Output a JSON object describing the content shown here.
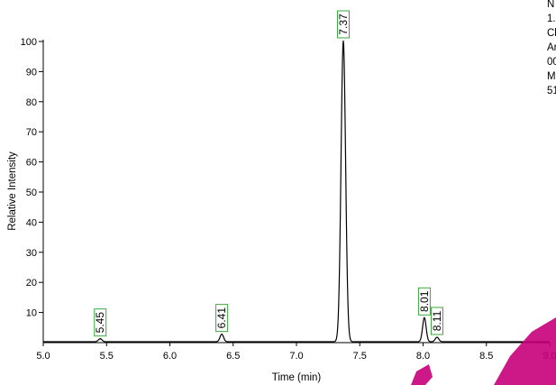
{
  "chart_data": {
    "type": "line",
    "xlabel": "Time (min)",
    "ylabel": "Relative Intensity",
    "xlim": [
      5.0,
      9.0
    ],
    "ylim": [
      0,
      100
    ],
    "x_ticks": [
      "5.0",
      "5.5",
      "6.0",
      "6.5",
      "7.0",
      "7.5",
      "8.0",
      "8.5",
      "9.0"
    ],
    "y_ticks": [
      "10",
      "20",
      "30",
      "40",
      "50",
      "60",
      "70",
      "80",
      "90",
      "100"
    ],
    "baseline": 0,
    "peaks": [
      {
        "label": "5.45",
        "rt": 5.45,
        "intensity": 1.0
      },
      {
        "label": "6.41",
        "rt": 6.41,
        "intensity": 2.5
      },
      {
        "label": "7.37",
        "rt": 7.37,
        "intensity": 100
      },
      {
        "label": "8.01",
        "rt": 8.01,
        "intensity": 8.0
      },
      {
        "label": "8.11",
        "rt": 8.11,
        "intensity": 1.5
      }
    ],
    "grid": false
  },
  "corner_text": [
    "N",
    "1.",
    "Cl",
    "Ar",
    "00",
    "M",
    "51"
  ]
}
